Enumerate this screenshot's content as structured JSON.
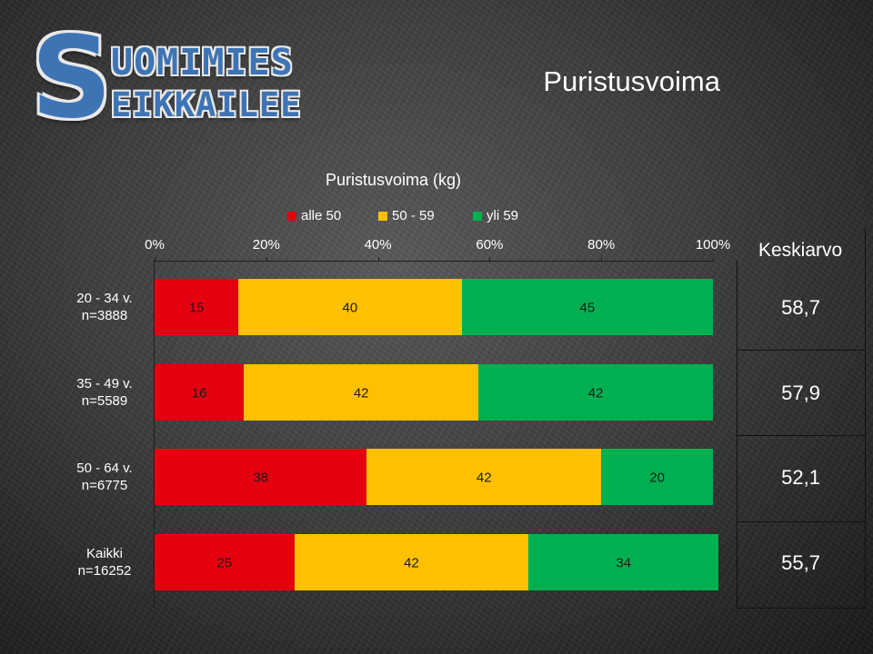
{
  "logo": {
    "line1": "UOMIMIES",
    "line2": "EIKKAILEE",
    "initial": "S"
  },
  "slide_title": "Puristusvoima",
  "chart_data": {
    "type": "bar",
    "orientation": "horizontal-stacked-percent",
    "title": "Puristusvoima (kg)",
    "xlim": [
      0,
      100
    ],
    "x_ticks": [
      "0%",
      "20%",
      "40%",
      "60%",
      "80%",
      "100%"
    ],
    "legend_position": "top",
    "categories": [
      "20 - 34 v.\nn=3888",
      "35 - 49 v.\nn=5589",
      "50 - 64 v.\nn=6775",
      "Kaikki\nn=16252"
    ],
    "series": [
      {
        "name": "alle 50",
        "color": "#e3000f",
        "values": [
          15,
          16,
          38,
          25
        ]
      },
      {
        "name": "50 - 59",
        "color": "#ffc000",
        "values": [
          40,
          42,
          42,
          42
        ]
      },
      {
        "name": "yli 59",
        "color": "#00b050",
        "values": [
          45,
          42,
          20,
          34
        ]
      }
    ],
    "side_column": {
      "header": "Keskiarvo",
      "values": [
        "58,7",
        "57,9",
        "52,1",
        "55,7"
      ]
    }
  }
}
